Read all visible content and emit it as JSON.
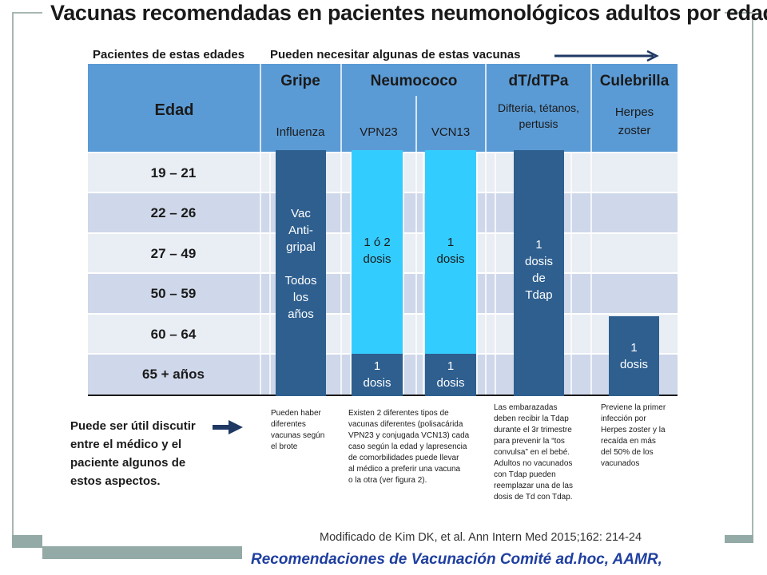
{
  "title": "Vacunas recomendadas en pacientes neumonológicos adultos por edad",
  "subheader": {
    "left": "Pacientes de estas edades",
    "right": "Pueden necesitar algunas de estas vacunas"
  },
  "table": {
    "age_header": "Edad",
    "groups": {
      "gripe": "Gripe",
      "neumococo": "Neumococo",
      "dt": "dT/dTPa",
      "culebrilla": "Culebrilla"
    },
    "subheaders": {
      "influenza": "Influenza",
      "vpn23": "VPN23",
      "vcn13": "VCN13",
      "dt_line1": "Difteria, tétanos,",
      "dt_line2": "pertusis",
      "herpes_line1": "Herpes",
      "herpes_line2": "zoster"
    },
    "ages": [
      "19 – 21",
      "22 – 26",
      "27 – 49",
      "50 – 59",
      "60 – 64",
      "65 + años"
    ]
  },
  "bars": {
    "gripe": [
      "Vac",
      "Anti-",
      "gripal",
      "",
      "Todos",
      "los",
      "años"
    ],
    "vpn23_main": [
      "1 ó 2",
      "dosis"
    ],
    "vpn23_65": [
      "1",
      "dosis"
    ],
    "vcn13_main": [
      "1",
      "dosis"
    ],
    "vcn13_65": [
      "1",
      "dosis"
    ],
    "dt": [
      "1",
      "dosis",
      "de",
      "Tdap"
    ],
    "herpes": [
      "1",
      "dosis"
    ]
  },
  "notes": {
    "influenza": [
      "Pueden haber",
      "diferentes",
      "vacunas según",
      "el brote"
    ],
    "neumococo": [
      "Existen 2 diferentes tipos de",
      "vacunas diferentes (polisacárida",
      "VPN23 y conjugada VCN13) cada",
      "caso según la edad y lapresencia",
      "de comorbilidades puede llevar",
      "al médico a preferir una vacuna",
      "o la otra (ver figura 2)."
    ],
    "dt": [
      "Las embarazadas",
      "deben recibir la Tdap",
      "durante el 3r trimestre",
      "para prevenir la “tos",
      "convulsa” en el bebé.",
      "Adultos no vacunados",
      "con Tdap pueden",
      "reemplazar una de las",
      "dosis de Td con Tdap."
    ],
    "herpes": [
      "Previene la primer",
      "infección por",
      "Herpes zoster y la",
      "recaída en más",
      "del 50% de los",
      "vacunados"
    ]
  },
  "discuss": [
    "Puede ser útil discutir",
    "entre el médico y el",
    "paciente algunos de",
    "estos aspectos."
  ],
  "citation": "Modificado de Kim DK, et al. Ann Intern Med 2015;162: 214-24",
  "footer": "Recomendaciones de Vacunación Comité ad.hoc, AAMR,",
  "colors": {
    "header_blue": "#5b9bd5",
    "row_light": "#e9edf4",
    "row_dark": "#cfd8ea",
    "bar_dark": "#2e5f8f",
    "bar_cyan": "#33ccff",
    "footer_blue": "#1f3fa0",
    "arrow_navy": "#1f3864"
  }
}
